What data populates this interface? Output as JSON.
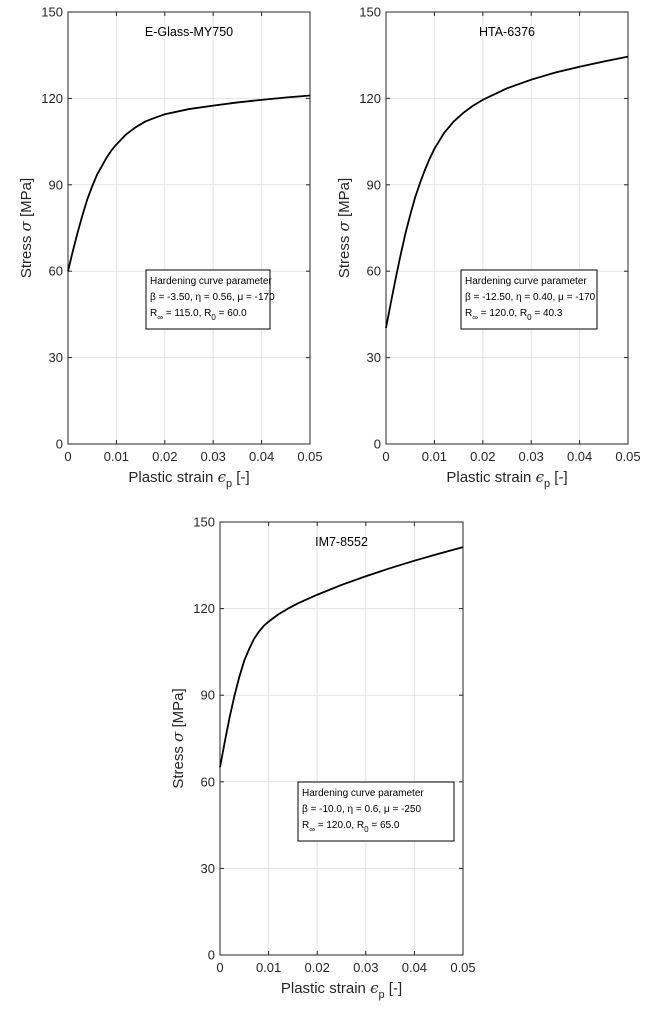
{
  "chart_data": [
    {
      "type": "line",
      "title": "E-Glass-MY750",
      "xlabel_main": "Plastic strain ",
      "xlabel_symbol": "ϵ",
      "xlabel_sub": "p",
      "xlabel_tail": " [-]",
      "ylabel_main": "Stress ",
      "ylabel_symbol": "σ",
      "ylabel_tail": " [MPa]",
      "xlim": [
        0,
        0.05
      ],
      "ylim": [
        0,
        150
      ],
      "xticks": [
        "0",
        "0.01",
        "0.02",
        "0.03",
        "0.04",
        "0.05"
      ],
      "yticks": [
        "0",
        "30",
        "60",
        "90",
        "120",
        "150"
      ],
      "grid": true,
      "series": [
        {
          "color": "#000000",
          "x": [
            0,
            0.001,
            0.002,
            0.003,
            0.004,
            0.005,
            0.006,
            0.007,
            0.008,
            0.009,
            0.01,
            0.012,
            0.014,
            0.016,
            0.018,
            0.02,
            0.025,
            0.03,
            0.035,
            0.04,
            0.045,
            0.05
          ],
          "y": [
            60,
            67,
            73.5,
            79.5,
            85,
            89.5,
            93.5,
            96.5,
            99.5,
            102,
            104,
            107.5,
            110,
            112,
            113.3,
            114.5,
            116.3,
            117.5,
            118.6,
            119.5,
            120.3,
            121
          ]
        }
      ],
      "legend": {
        "heading": "Hardening curve parameter",
        "line1": "β = -3.50,  η = 0.56,  μ = -170",
        "line2_a": "R",
        "line2_sub_a": "∞",
        "line2_b": " = 115.0, R",
        "line2_sub_b": "0",
        "line2_c": " = 60.0"
      }
    },
    {
      "type": "line",
      "title": "HTA-6376",
      "xlabel_main": "Plastic strain ",
      "xlabel_symbol": "ϵ",
      "xlabel_sub": "p",
      "xlabel_tail": " [-]",
      "ylabel_main": "Stress ",
      "ylabel_symbol": "σ",
      "ylabel_tail": " [MPa]",
      "xlim": [
        0,
        0.05
      ],
      "ylim": [
        0,
        150
      ],
      "xticks": [
        "0",
        "0.01",
        "0.02",
        "0.03",
        "0.04",
        "0.05"
      ],
      "yticks": [
        "0",
        "30",
        "60",
        "90",
        "120",
        "150"
      ],
      "grid": true,
      "series": [
        {
          "color": "#000000",
          "x": [
            0,
            0.001,
            0.002,
            0.003,
            0.004,
            0.005,
            0.006,
            0.007,
            0.008,
            0.009,
            0.01,
            0.012,
            0.014,
            0.016,
            0.018,
            0.02,
            0.025,
            0.03,
            0.035,
            0.04,
            0.045,
            0.05
          ],
          "y": [
            40.3,
            49,
            57.5,
            65.5,
            73,
            79.5,
            85.5,
            90.5,
            95,
            99,
            102.5,
            108,
            112,
            115,
            117.5,
            119.5,
            123.5,
            126.5,
            129,
            131,
            132.8,
            134.5
          ]
        }
      ],
      "legend": {
        "heading": "Hardening curve parameter",
        "line1": "β = -12.50,  η = 0.40,  μ = -170",
        "line2_a": "R",
        "line2_sub_a": "∞",
        "line2_b": " = 120.0, R",
        "line2_sub_b": "0",
        "line2_c": " = 40.3"
      }
    },
    {
      "type": "line",
      "title": "IM7-8552",
      "xlabel_main": "Plastic strain ",
      "xlabel_symbol": "ϵ",
      "xlabel_sub": "p",
      "xlabel_tail": " [-]",
      "ylabel_main": "Stress ",
      "ylabel_symbol": "σ",
      "ylabel_tail": " [MPa]",
      "xlim": [
        0,
        0.05
      ],
      "ylim": [
        0,
        150
      ],
      "xticks": [
        "0",
        "0.01",
        "0.02",
        "0.03",
        "0.04",
        "0.05"
      ],
      "yticks": [
        "0",
        "30",
        "60",
        "90",
        "120",
        "150"
      ],
      "grid": true,
      "series": [
        {
          "color": "#000000",
          "x": [
            0,
            0.001,
            0.002,
            0.003,
            0.004,
            0.005,
            0.006,
            0.007,
            0.008,
            0.009,
            0.01,
            0.012,
            0.014,
            0.016,
            0.018,
            0.02,
            0.025,
            0.03,
            0.035,
            0.04,
            0.045,
            0.05
          ],
          "y": [
            65,
            74,
            82.5,
            90,
            96.5,
            102,
            106,
            109.5,
            112,
            114,
            115.5,
            118,
            120,
            121.8,
            123.3,
            124.8,
            128.2,
            131.2,
            134,
            136.6,
            139,
            141.3
          ]
        }
      ],
      "legend": {
        "heading": "Hardening curve parameter",
        "line1": "β = -10.0,  η = 0.6,  μ = -250",
        "line2_a": "R",
        "line2_sub_a": "∞",
        "line2_b": " = 120.0, R",
        "line2_sub_b": "0",
        "line2_c": " = 65.0"
      }
    }
  ]
}
